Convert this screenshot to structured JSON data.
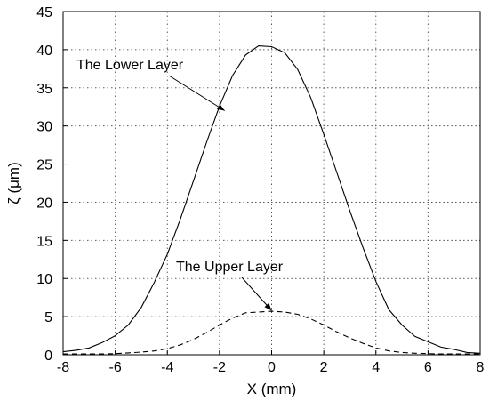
{
  "chart_data": {
    "type": "line",
    "title": "",
    "xlabel": "X (mm)",
    "ylabel": "ζ  (μm)",
    "xlim": [
      -8,
      8
    ],
    "ylim": [
      0,
      45
    ],
    "xticks": [
      -8,
      -6,
      -4,
      -2,
      0,
      2,
      4,
      6,
      8
    ],
    "yticks": [
      0,
      5,
      10,
      15,
      20,
      25,
      30,
      35,
      40,
      45
    ],
    "grid": true,
    "legend": "none",
    "series": [
      {
        "annotation": "The Lower Layer",
        "line_style": "solid",
        "color": "#000000",
        "x": [
          -8,
          -7.5,
          -7,
          -6.5,
          -6,
          -5.5,
          -5,
          -4.5,
          -4,
          -3.5,
          -3,
          -2.5,
          -2,
          -1.5,
          -1,
          -0.5,
          0,
          0.5,
          1,
          1.5,
          2,
          2.5,
          3,
          3.5,
          4,
          4.5,
          5,
          5.5,
          6,
          6.5,
          7,
          7.5,
          8
        ],
        "y": [
          0.4,
          0.6,
          0.9,
          1.6,
          2.5,
          3.9,
          6.2,
          9.5,
          13.2,
          17.8,
          22.8,
          27.8,
          32.6,
          36.6,
          39.3,
          40.5,
          40.4,
          39.6,
          37.4,
          33.7,
          28.9,
          23.9,
          18.9,
          14.1,
          9.6,
          5.9,
          3.9,
          2.4,
          1.7,
          1.0,
          0.7,
          0.3,
          0.2
        ]
      },
      {
        "annotation": "The Upper Layer",
        "line_style": "dashed",
        "color": "#000000",
        "x": [
          -8,
          -7.5,
          -7,
          -6.5,
          -6,
          -5.5,
          -5,
          -4.5,
          -4,
          -3.5,
          -3,
          -2.5,
          -2,
          -1.5,
          -1,
          -0.5,
          0,
          0.5,
          1,
          1.5,
          2,
          2.5,
          3,
          3.5,
          4,
          4.5,
          5,
          5.5,
          6,
          6.5,
          7,
          7.5,
          8
        ],
        "y": [
          0.1,
          0.1,
          0.1,
          0.1,
          0.15,
          0.25,
          0.35,
          0.5,
          0.8,
          1.3,
          2.0,
          2.9,
          3.9,
          4.8,
          5.5,
          5.6,
          5.7,
          5.6,
          5.3,
          4.7,
          3.9,
          3.0,
          2.2,
          1.5,
          0.9,
          0.5,
          0.3,
          0.2,
          0.15,
          0.1,
          0.1,
          0.1,
          0.1
        ]
      }
    ],
    "annotations": [
      {
        "text": "The Lower Layer",
        "target": [
          -1.8,
          32
        ]
      },
      {
        "text": "The Upper Layer",
        "target": [
          0,
          5.8
        ]
      }
    ]
  }
}
